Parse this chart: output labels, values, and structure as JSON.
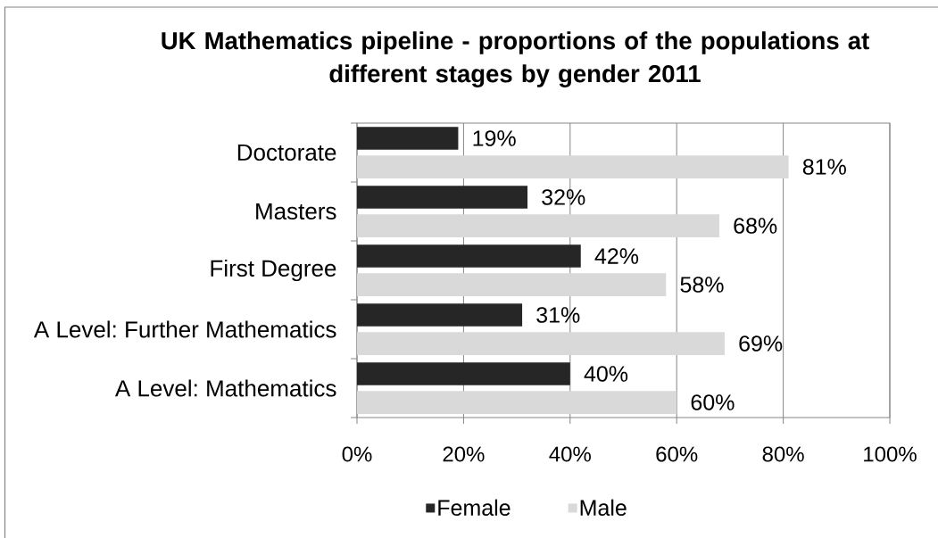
{
  "chart_data": {
    "type": "bar",
    "orientation": "horizontal",
    "title": "UK Mathematics pipeline - proportions of the populations at different stages by gender 2011",
    "categories": [
      "Doctorate",
      "Masters",
      "First Degree",
      "A Level: Further Mathematics",
      "A Level: Mathematics"
    ],
    "series": [
      {
        "name": "Female",
        "color": "#262626",
        "values": [
          19,
          32,
          42,
          31,
          40
        ],
        "value_labels": [
          "19%",
          "32%",
          "42%",
          "31%",
          "40%"
        ]
      },
      {
        "name": "Male",
        "color": "#d9d9d9",
        "values": [
          81,
          68,
          58,
          69,
          60
        ],
        "value_labels": [
          "81%",
          "68%",
          "58%",
          "69%",
          "60%"
        ]
      }
    ],
    "xlim": [
      0,
      100
    ],
    "xticks": [
      {
        "value": 0,
        "label": "0%"
      },
      {
        "value": 20,
        "label": "20%"
      },
      {
        "value": 40,
        "label": "40%"
      },
      {
        "value": 60,
        "label": "60%"
      },
      {
        "value": 80,
        "label": "80%"
      },
      {
        "value": 100,
        "label": "100%"
      }
    ],
    "grid": "x",
    "legend": "bottom"
  }
}
